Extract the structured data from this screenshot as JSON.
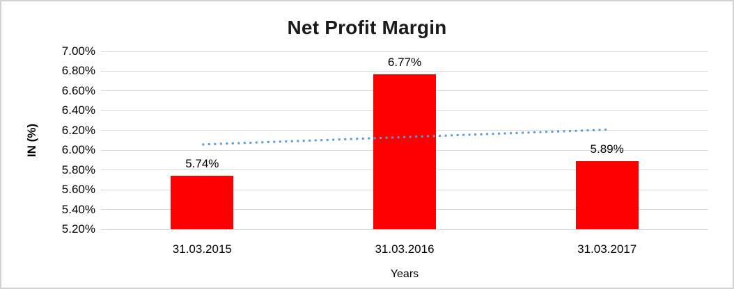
{
  "chart": {
    "title": "Net Profit Margin",
    "xlabel": "Years",
    "ylabel": "IN (%)"
  },
  "chart_data": {
    "type": "bar",
    "title": "Net Profit Margin",
    "xlabel": "Years",
    "ylabel": "IN (%)",
    "categories": [
      "31.03.2015",
      "31.03.2016",
      "31.03.2017"
    ],
    "values": [
      5.74,
      6.77,
      5.89
    ],
    "data_labels": [
      "5.74%",
      "6.77%",
      "5.89%"
    ],
    "ylim": [
      5.2,
      7.0
    ],
    "ytick_step": 0.2,
    "ytick_labels": [
      "7.00%",
      "6.80%",
      "6.60%",
      "6.40%",
      "6.20%",
      "6.00%",
      "5.80%",
      "5.60%",
      "5.40%",
      "5.20%"
    ],
    "grid": true,
    "legend": "none",
    "bar_color": "#FF0000",
    "gridline_color": "#d9d9d9",
    "trendline": {
      "type": "linear",
      "style": "dotted",
      "color": "#5B9BD5",
      "start_value": 6.058,
      "end_value": 6.208
    }
  }
}
